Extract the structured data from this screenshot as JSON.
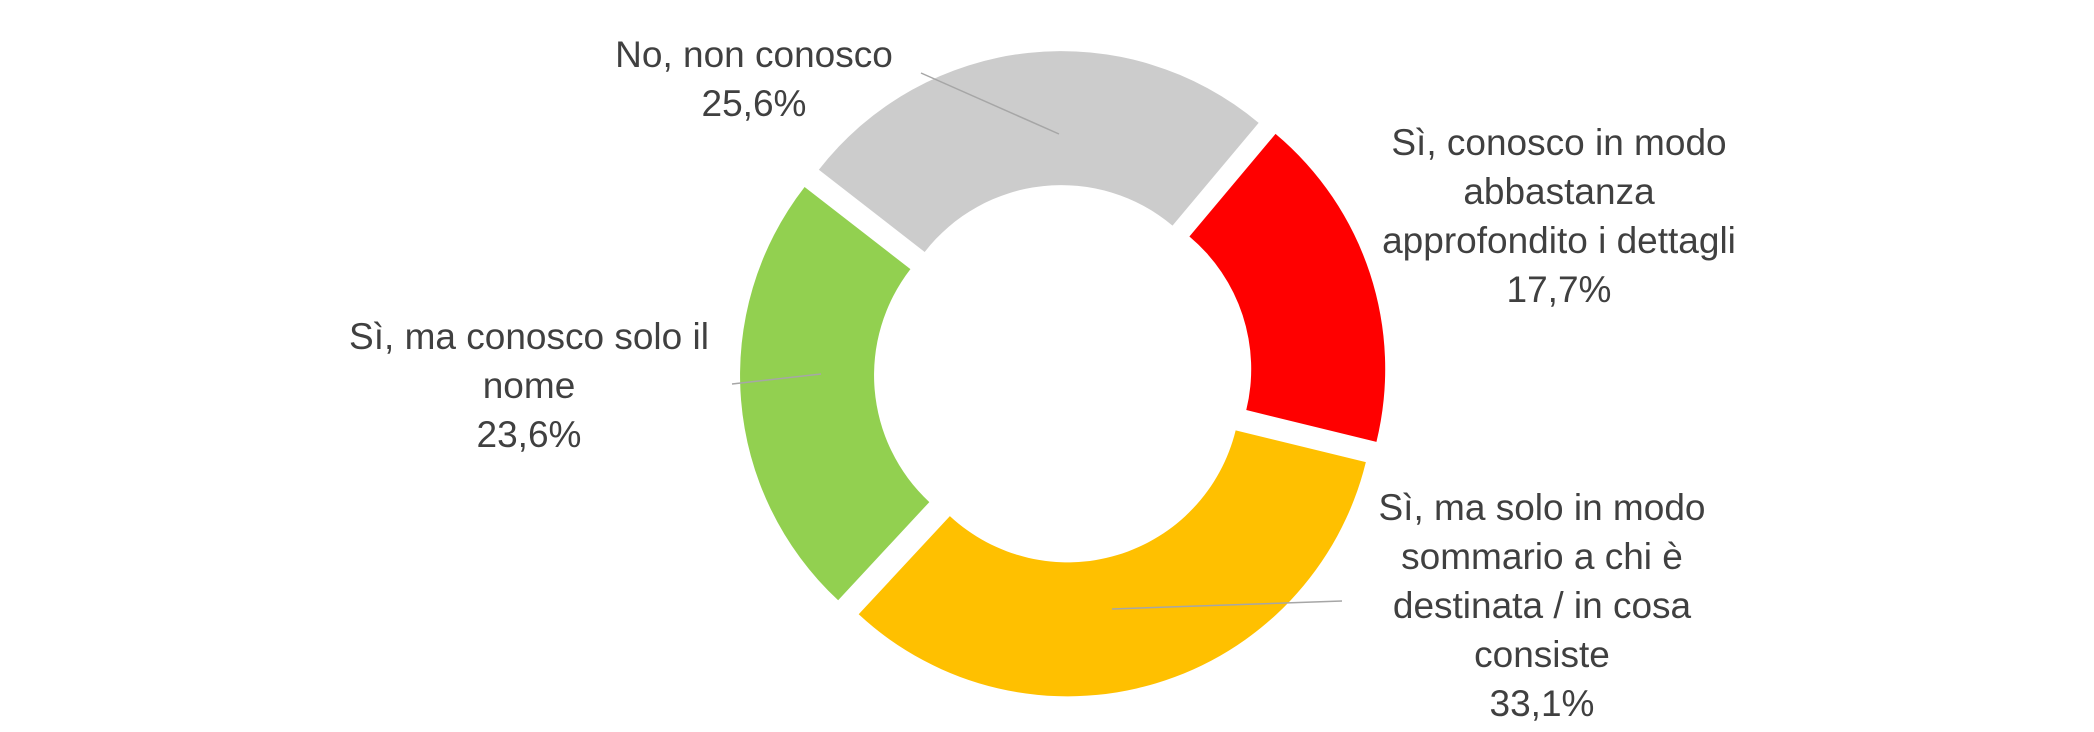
{
  "chart_data": {
    "type": "donut",
    "categories": [
      "Sì, conosco in modo abbastanza approfondito i dettagli",
      "Sì, ma solo in modo sommario a chi è destinata / in cosa consiste",
      "Sì, ma conosco solo il nome",
      "No, non conosco"
    ],
    "values": [
      17.7,
      33.1,
      23.6,
      25.6
    ],
    "value_labels": [
      "17,7%",
      "33,1%",
      "23,6%",
      "25,6%"
    ],
    "colors": [
      "#ff0000",
      "#ffc000",
      "#92d050",
      "#cccccc"
    ]
  }
}
